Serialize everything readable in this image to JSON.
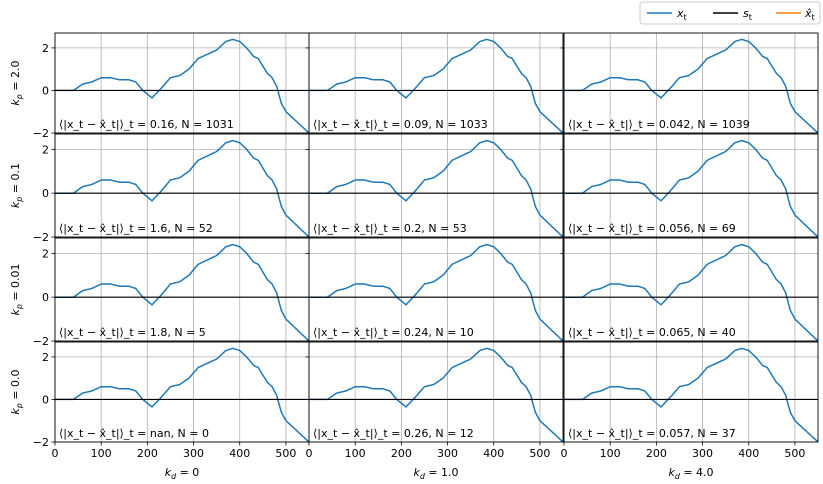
{
  "legend": {
    "items": [
      {
        "label": "x_t",
        "color": "#1f77b4"
      },
      {
        "label": "s_t",
        "color": "#000000"
      },
      {
        "label": "x̂_t",
        "color": "#ff7f0e"
      }
    ]
  },
  "chart_data": {
    "type": "line",
    "layout": "grid",
    "x_ticks": [
      0,
      100,
      200,
      300,
      400,
      500
    ],
    "y_ticks": [
      -2,
      0,
      2
    ],
    "xlim": [
      0,
      550
    ],
    "ylim": [
      -2.0,
      2.7
    ],
    "col_labels": [
      "k_d = 0",
      "k_d = 1.0",
      "k_d = 4.0"
    ],
    "row_labels": [
      "k_p = 2.0",
      "k_p = 0.1",
      "k_p = 0.01",
      "k_p = 0.0"
    ],
    "signal_x_t": {
      "x": [
        0,
        40,
        60,
        80,
        100,
        120,
        140,
        160,
        175,
        190,
        210,
        230,
        250,
        270,
        290,
        310,
        330,
        350,
        370,
        385,
        400,
        415,
        430,
        440,
        460,
        470,
        480,
        490,
        500,
        515,
        530,
        550
      ],
      "y": [
        0,
        0,
        0.3,
        0.4,
        0.6,
        0.6,
        0.5,
        0.5,
        0.4,
        0.0,
        -0.35,
        0.1,
        0.6,
        0.7,
        1.0,
        1.5,
        1.7,
        1.9,
        2.3,
        2.4,
        2.3,
        2.0,
        1.6,
        1.5,
        0.8,
        0.6,
        0.2,
        -0.6,
        -1.0,
        -1.3,
        -1.6,
        -2.0
      ]
    },
    "panels": [
      {
        "row": 0,
        "col": 0,
        "annotation": "⟨|x_t − x̂_t|⟩_t = 0.16,    N = 1031",
        "N": 1031,
        "mean_abs_error": "0.16"
      },
      {
        "row": 0,
        "col": 1,
        "annotation": "⟨|x_t − x̂_t|⟩_t = 0.09,    N = 1033",
        "N": 1033,
        "mean_abs_error": "0.09"
      },
      {
        "row": 0,
        "col": 2,
        "annotation": "⟨|x_t − x̂_t|⟩_t = 0.042,    N = 1039",
        "N": 1039,
        "mean_abs_error": "0.042"
      },
      {
        "row": 1,
        "col": 0,
        "annotation": "⟨|x_t − x̂_t|⟩_t = 1.6,    N = 52",
        "N": 52,
        "mean_abs_error": "1.6"
      },
      {
        "row": 1,
        "col": 1,
        "annotation": "⟨|x_t − x̂_t|⟩_t = 0.2,    N = 53",
        "N": 53,
        "mean_abs_error": "0.2"
      },
      {
        "row": 1,
        "col": 2,
        "annotation": "⟨|x_t − x̂_t|⟩_t = 0.056,    N = 69",
        "N": 69,
        "mean_abs_error": "0.056"
      },
      {
        "row": 2,
        "col": 0,
        "annotation": "⟨|x_t − x̂_t|⟩_t = 1.8,    N = 5",
        "N": 5,
        "mean_abs_error": "1.8"
      },
      {
        "row": 2,
        "col": 1,
        "annotation": "⟨|x_t − x̂_t|⟩_t = 0.24,    N = 10",
        "N": 10,
        "mean_abs_error": "0.24"
      },
      {
        "row": 2,
        "col": 2,
        "annotation": "⟨|x_t − x̂_t|⟩_t = 0.065,    N = 40",
        "N": 40,
        "mean_abs_error": "0.065"
      },
      {
        "row": 3,
        "col": 0,
        "annotation": "⟨|x_t − x̂_t|⟩_t = nan,    N = 0",
        "N": 0,
        "mean_abs_error": "nan"
      },
      {
        "row": 3,
        "col": 1,
        "annotation": "⟨|x_t − x̂_t|⟩_t = 0.26,    N = 12",
        "N": 12,
        "mean_abs_error": "0.26"
      },
      {
        "row": 3,
        "col": 2,
        "annotation": "⟨|x_t − x̂_t|⟩_t = 0.057,    N = 37",
        "N": 37,
        "mean_abs_error": "0.057"
      }
    ],
    "grid": true,
    "legend_position": "top-right",
    "colors": {
      "x_t": "#1f77b4",
      "s_t": "#000000",
      "xhat_t": "#ff7f0e"
    }
  }
}
